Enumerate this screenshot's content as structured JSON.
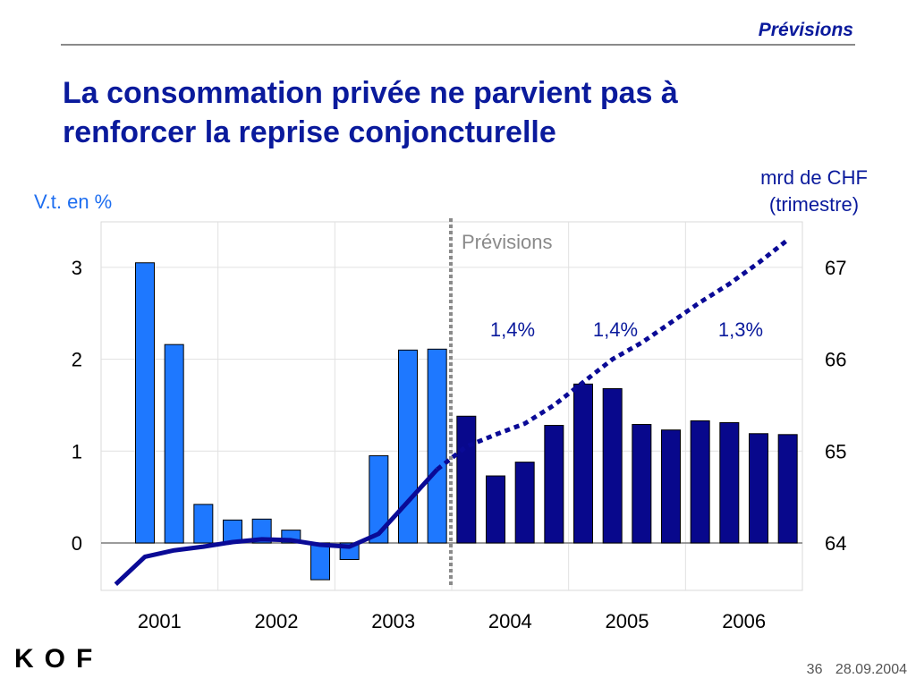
{
  "header": {
    "section": "Prévisions"
  },
  "title": {
    "line1": "La consommation privée ne parvient pas à",
    "line2": "renforcer la reprise conjoncturelle"
  },
  "footer": {
    "page": "36",
    "date": "28.09.2004",
    "logo": "KOF"
  },
  "chart_data": {
    "type": "bar",
    "left_axis_label": "V.t. en %",
    "right_axis_label": [
      "mrd de CHF",
      "(trimestre)"
    ],
    "forecast_label": "Prévisions",
    "annual_growth_labels": [
      "1,4%",
      "1,4%",
      "1,3%"
    ],
    "years": [
      "2001",
      "2002",
      "2003",
      "2004",
      "2005",
      "2006"
    ],
    "left_ylim": [
      -0.5,
      3.5
    ],
    "left_ticks": [
      "0",
      "1",
      "2",
      "3"
    ],
    "right_ylim": [
      63.5,
      67.5
    ],
    "right_ticks": [
      "64",
      "65",
      "66",
      "67"
    ],
    "grid": true,
    "colors": {
      "actual": "#1e78ff",
      "forecast": "#08088c",
      "line": "#0a0a96",
      "separator": "#8a8a8a"
    },
    "bars_actual": [
      3.05,
      2.16,
      0.42,
      0.25,
      0.26,
      0.14,
      -0.4,
      -0.18,
      0.95,
      2.1,
      2.11
    ],
    "bars_forecast": [
      1.38,
      0.73,
      0.88,
      1.28,
      1.73,
      1.68,
      1.29,
      1.23,
      1.33,
      1.31,
      1.19,
      1.18
    ],
    "level_actual": [
      63.55,
      63.85,
      63.92,
      63.96,
      64.01,
      64.04,
      64.03,
      63.98,
      63.96,
      64.1,
      64.45,
      64.8
    ],
    "level_forecast": [
      64.8,
      65.05,
      65.18,
      65.3,
      65.5,
      65.75,
      66.0,
      66.18,
      66.4,
      66.62,
      66.82,
      67.05,
      67.3
    ]
  }
}
